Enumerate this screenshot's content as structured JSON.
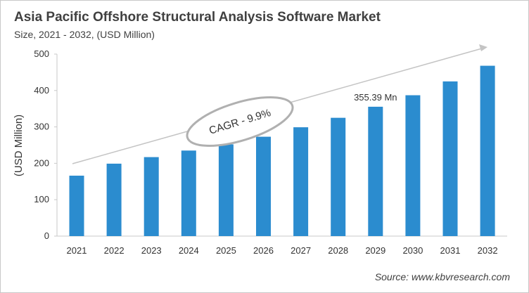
{
  "chart_data": {
    "type": "bar",
    "title": "Asia Pacific Offshore Structural Analysis Software Market",
    "subtitle": "Size, 2021 - 2032, (USD Million)",
    "xlabel": "",
    "ylabel": "(USD Million)",
    "ylim": [
      0,
      500
    ],
    "yticks": [
      0,
      100,
      200,
      300,
      400,
      500
    ],
    "grid": false,
    "categories": [
      "2021",
      "2022",
      "2023",
      "2024",
      "2025",
      "2026",
      "2027",
      "2028",
      "2029",
      "2030",
      "2031",
      "2032"
    ],
    "values": [
      166,
      199,
      217,
      235,
      252,
      273,
      299,
      325,
      355.39,
      387,
      425,
      468
    ],
    "bar_color": "#2b8ccf",
    "annotations": {
      "data_label": {
        "category": "2029",
        "text": "355.39 Mn"
      },
      "cagr": "CAGR - 9.9%"
    },
    "source": "Source: www.kbvresearch.com"
  }
}
